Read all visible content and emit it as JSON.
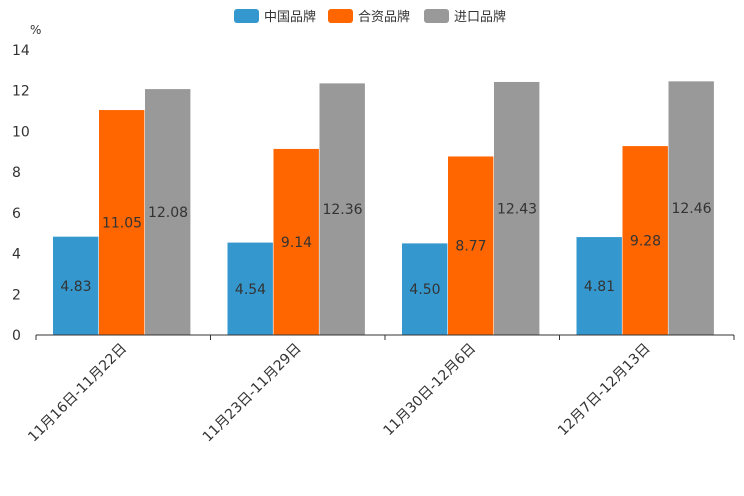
{
  "chart_data": {
    "type": "bar",
    "unit": "%",
    "categories": [
      "11月16日-11月22日",
      "11月23日-11月29日",
      "11月30日-12月6日",
      "12月7日-12月13日"
    ],
    "series": [
      {
        "name": "中国品牌",
        "color": "#3498cf",
        "values": [
          4.83,
          4.54,
          4.5,
          4.81
        ],
        "labels": [
          "4.83",
          "4.54",
          "4.50",
          "4.81"
        ]
      },
      {
        "name": "合资品牌",
        "color": "#ff6600",
        "values": [
          11.05,
          9.14,
          8.77,
          9.28
        ],
        "labels": [
          "11.05",
          "9.14",
          "8.77",
          "9.28"
        ]
      },
      {
        "name": "进口品牌",
        "color": "#999999",
        "values": [
          12.08,
          12.36,
          12.43,
          12.46
        ],
        "labels": [
          "12.08",
          "12.36",
          "12.43",
          "12.46"
        ]
      }
    ],
    "yticks": [
      "0",
      "2",
      "4",
      "6",
      "8",
      "10",
      "12",
      "14"
    ],
    "ylim": [
      0,
      14
    ],
    "legend_position": "top-center"
  }
}
